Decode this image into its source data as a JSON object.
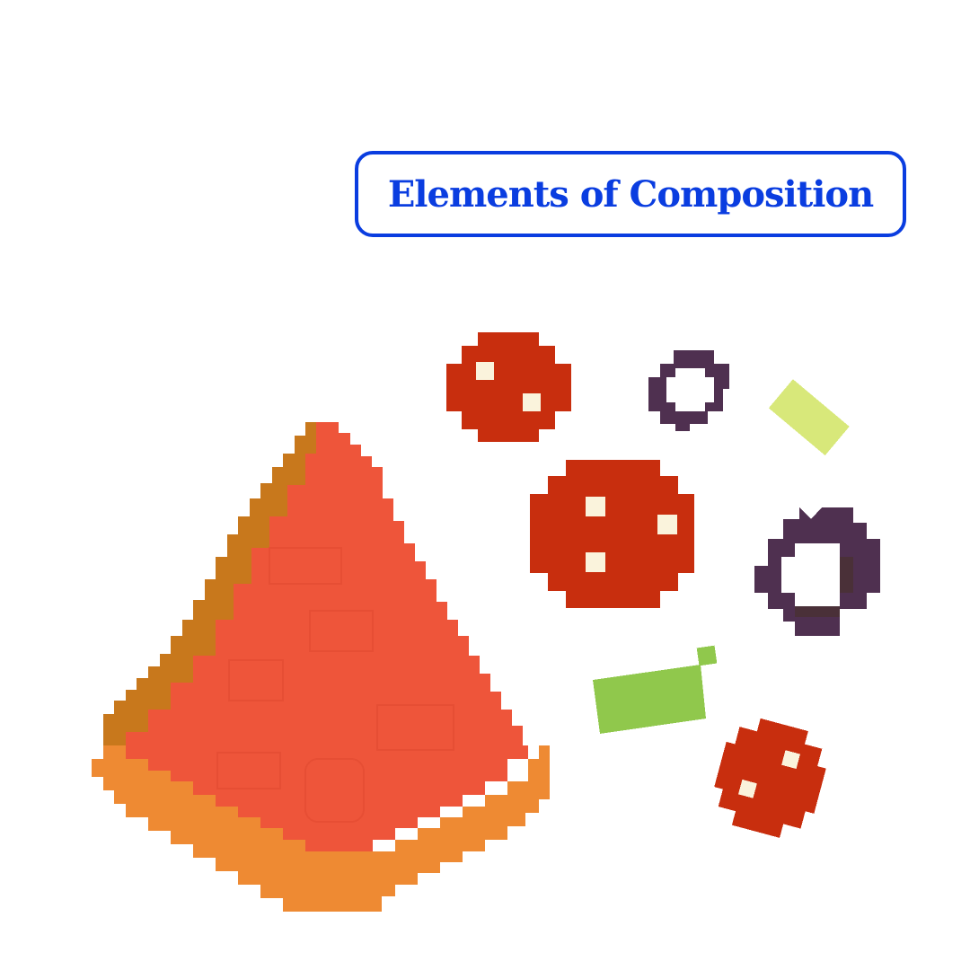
{
  "header": {
    "title": "Elements of Composition"
  },
  "illustration": {
    "subject": "pixel-art pizza slice with scattered toppings",
    "elements": [
      "pizza-slice",
      "pepperoni",
      "olive-ring",
      "green-pepper-strip"
    ]
  },
  "colors": {
    "title_blue": "#0a3de0",
    "sauce_red": "#ee553a",
    "crust_orange": "#ee8a33",
    "crust_brown": "#c8781c",
    "pepperoni_red": "#c82e0e",
    "pepperoni_spot": "#faf3dc",
    "olive_purple": "#4f3050",
    "olive_dark": "#4a3038",
    "pepper_green": "#90c84c",
    "pepper_light": "#d8e87a"
  }
}
